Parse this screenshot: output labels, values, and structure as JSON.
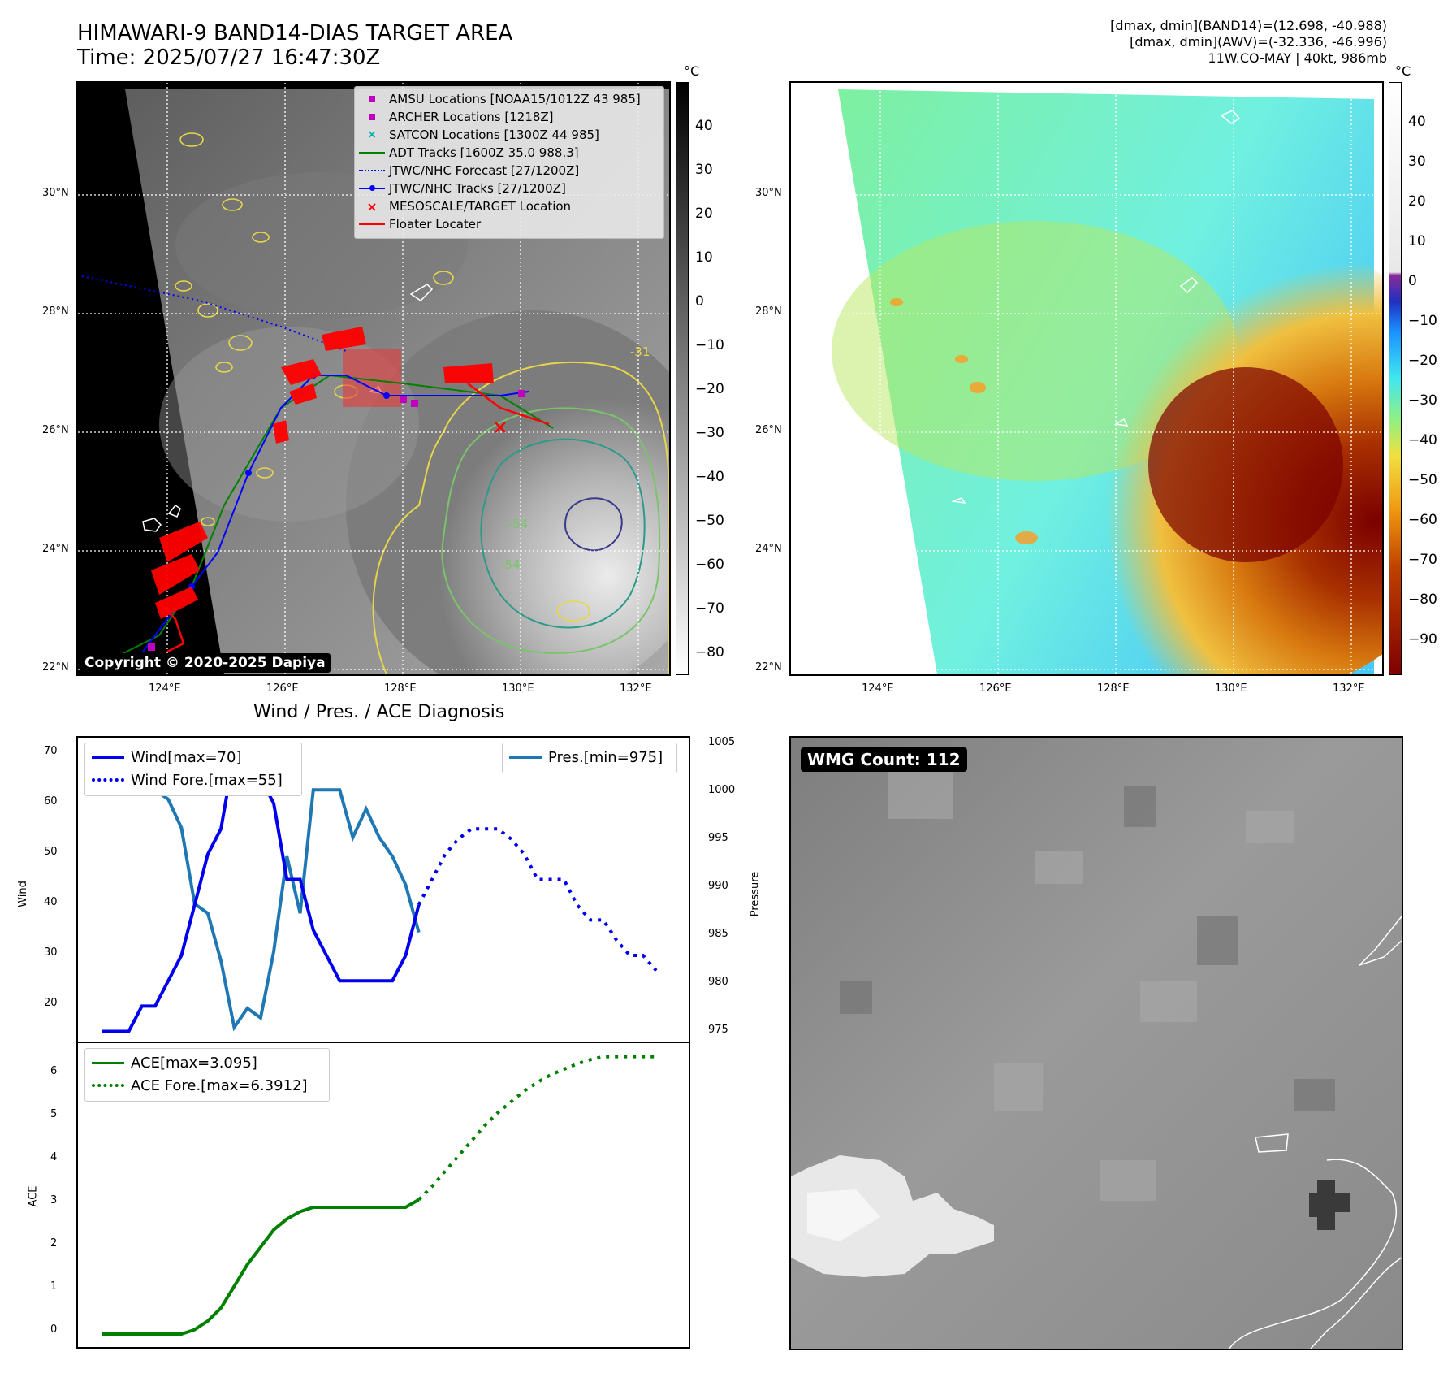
{
  "header": {
    "title_line1": "HIMAWARI-9 BAND14-DIAS TARGET AREA",
    "title_line2": "Time: 2025/07/27 16:47:30Z",
    "info_line1": "[dmax, dmin](BAND14)=(12.698, -40.988)",
    "info_line2": "[dmax, dmin](AWV)=(-32.336, -46.996)",
    "info_line3": "11W.CO-MAY | 40kt, 986mb"
  },
  "map_axes": {
    "lat_labels": [
      "30°N",
      "28°N",
      "26°N",
      "24°N",
      "22°N"
    ],
    "lon_labels": [
      "124°E",
      "126°E",
      "128°E",
      "130°E",
      "132°E"
    ]
  },
  "colorbar_gray": {
    "unit": "°C",
    "ticks": [
      "40",
      "30",
      "20",
      "10",
      "0",
      "−10",
      "−20",
      "−30",
      "−40",
      "−50",
      "−60",
      "−70",
      "−80"
    ]
  },
  "colorbar_color": {
    "unit": "°C",
    "ticks": [
      "40",
      "30",
      "20",
      "10",
      "0",
      "−10",
      "−20",
      "−30",
      "−40",
      "−50",
      "−60",
      "−70",
      "−80",
      "−90"
    ]
  },
  "legend": {
    "amsu": "AMSU Locations [NOAA15/1012Z 43 985]",
    "archer": "ARCHER Locations [1218Z]",
    "satcon": "SATCON Locations [1300Z 44 985]",
    "adt": "ADT Tracks [1600Z 35.0 988.3]",
    "jtwc_fc": "JTWC/NHC Forecast [27/1200Z]",
    "jtwc_tr": "JTWC/NHC Tracks [27/1200Z]",
    "meso": "MESOSCALE/TARGET Location",
    "floater": "Floater Locater"
  },
  "contour_labels": {
    "c1": "-31",
    "c2": "-54",
    "c3": "-54"
  },
  "copyright": "Copyright © 2020-2025 Dapiya",
  "wmg_label": "WMG Count: 112",
  "colors": {
    "wind": "#0000ee",
    "pressure": "#1f77b4",
    "ace": "#008000",
    "forecast_track": "#0000ff",
    "floater": "#ff0000"
  },
  "chart_data": [
    {
      "type": "line",
      "title": "Wind / Pres. / ACE Diagnosis",
      "ylabel": "Wind",
      "y2label": "Pressure",
      "ylim": [
        13,
        73
      ],
      "y2lim": [
        973.5,
        1005.5
      ],
      "yticks": [
        "70",
        "60",
        "50",
        "40",
        "30",
        "20"
      ],
      "y2ticks": [
        "1005",
        "1000",
        "995",
        "990",
        "985",
        "980",
        "975"
      ],
      "legend_left": [
        "Wind[max=70]",
        "Wind Fore.[max=55]"
      ],
      "legend_right": [
        "Pres.[min=975]"
      ],
      "series": [
        {
          "name": "Wind[max=70]",
          "style": "solid",
          "values": [
            15,
            15,
            15,
            20,
            20,
            25,
            30,
            40,
            50,
            55,
            70,
            65,
            65,
            60,
            45,
            45,
            35,
            30,
            25,
            25,
            25,
            25,
            25,
            30,
            40
          ]
        },
        {
          "name": "Wind Fore.[max=55]",
          "style": "dotted",
          "start_index": 24,
          "values": [
            40,
            45,
            50,
            53,
            55,
            55,
            55,
            53,
            50,
            45,
            45,
            45,
            40,
            37,
            37,
            33,
            30,
            30,
            27
          ]
        },
        {
          "name": "Pres.[min=975]",
          "style": "solid",
          "axis": "right",
          "values": [
            1004,
            1004,
            1004,
            1002,
            1000,
            999,
            996,
            988,
            987,
            982,
            975,
            977,
            976,
            983,
            993,
            987,
            1000,
            1000,
            1000,
            995,
            998,
            995,
            993,
            990,
            985
          ]
        }
      ]
    },
    {
      "type": "line",
      "ylabel": "ACE",
      "ylim": [
        -0.3,
        6.7
      ],
      "yticks": [
        "6",
        "5",
        "4",
        "3",
        "2",
        "1",
        "0"
      ],
      "legend": [
        "ACE[max=3.095]",
        "ACE Fore.[max=6.3912]"
      ],
      "series": [
        {
          "name": "ACE[max=3.095]",
          "style": "solid",
          "values": [
            0,
            0,
            0,
            0,
            0,
            0,
            0,
            0.1,
            0.3,
            0.6,
            1.1,
            1.6,
            2.0,
            2.4,
            2.65,
            2.82,
            2.92,
            2.92,
            2.92,
            2.92,
            2.92,
            2.92,
            2.92,
            2.92,
            3.095
          ]
        },
        {
          "name": "ACE Fore.[max=6.3912]",
          "style": "dotted",
          "start_index": 24,
          "values": [
            3.095,
            3.4,
            3.75,
            4.1,
            4.45,
            4.8,
            5.1,
            5.35,
            5.6,
            5.8,
            5.97,
            6.1,
            6.22,
            6.32,
            6.39,
            6.39,
            6.39,
            6.39,
            6.39
          ]
        }
      ]
    }
  ]
}
